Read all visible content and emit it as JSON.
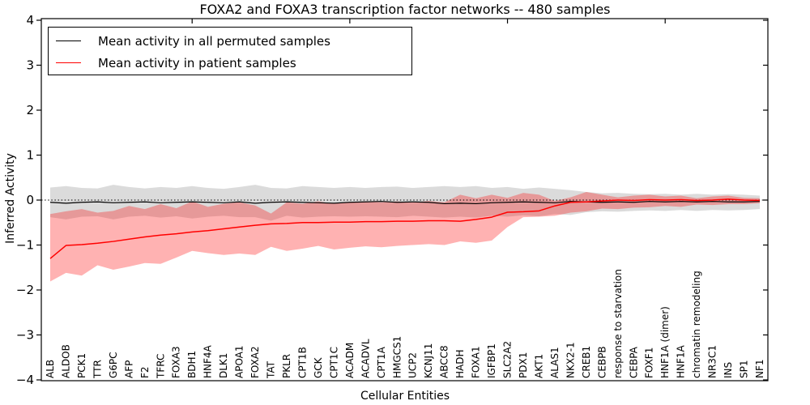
{
  "chart_data": {
    "type": "line",
    "title": "FOXA2 and FOXA3 transcription factor networks -- 480 samples",
    "xlabel": "Cellular Entities",
    "ylabel": "Inferred Activity",
    "ylim": [
      -4,
      4
    ],
    "yticks": [
      4,
      3,
      2,
      1,
      0,
      -1,
      -2,
      -3,
      -4
    ],
    "yticklabels": [
      "4",
      "3",
      "2",
      "1",
      "0",
      "−1",
      "−2",
      "−3",
      "−4"
    ],
    "grid": false,
    "zero_line": {
      "y": 0,
      "style": "dotted",
      "color": "#000000"
    },
    "top_axis_tick_indices": [
      9,
      19,
      29,
      39
    ],
    "legend": {
      "position": "upper left",
      "entries": [
        {
          "label": "Mean activity in all permuted samples",
          "color": "#000000"
        },
        {
          "label": "Mean activity in patient samples",
          "color": "#ff0000"
        }
      ]
    },
    "categories": [
      "ALB",
      "ALDOB",
      "PCK1",
      "TTR",
      "G6PC",
      "AFP",
      "F2",
      "TFRC",
      "FOXA3",
      "BDH1",
      "HNF4A",
      "DLK1",
      "APOA1",
      "FOXA2",
      "TAT",
      "PKLR",
      "CPT1B",
      "GCK",
      "CPT1C",
      "ACADM",
      "ACADVL",
      "CPT1A",
      "HMGCS1",
      "UCP2",
      "KCNJ11",
      "ABCC8",
      "HADH",
      "FOXA1",
      "IGFBP1",
      "SLC2A2",
      "PDX1",
      "AKT1",
      "ALAS1",
      "NKX2-1",
      "CREB1",
      "CEBPB",
      "response to starvation",
      "CEBPA",
      "FOXF1",
      "HNF1A (dimer)",
      "HNF1A",
      "chromatin remodeling",
      "NR3C1",
      "INS",
      "SP1",
      "NF1"
    ],
    "series": [
      {
        "name": "Mean activity in all permuted samples",
        "color": "#000000",
        "line_width": 1.2,
        "band_color": "#000000",
        "band_opacity": 0.14,
        "values": [
          -0.05,
          -0.07,
          -0.05,
          -0.04,
          -0.06,
          -0.05,
          -0.04,
          -0.06,
          -0.05,
          -0.04,
          -0.05,
          -0.06,
          -0.04,
          -0.07,
          -0.05,
          -0.04,
          -0.05,
          -0.06,
          -0.07,
          -0.05,
          -0.04,
          -0.03,
          -0.05,
          -0.04,
          -0.05,
          -0.08,
          -0.07,
          -0.08,
          -0.06,
          -0.05,
          -0.04,
          -0.05,
          -0.06,
          -0.03,
          -0.04,
          -0.05,
          -0.04,
          -0.05,
          -0.03,
          -0.04,
          -0.03,
          -0.04,
          -0.03,
          -0.04,
          -0.04,
          -0.03
        ],
        "band_upper": [
          0.28,
          0.31,
          0.27,
          0.26,
          0.34,
          0.29,
          0.26,
          0.29,
          0.27,
          0.31,
          0.27,
          0.25,
          0.29,
          0.34,
          0.27,
          0.26,
          0.31,
          0.29,
          0.27,
          0.29,
          0.27,
          0.29,
          0.3,
          0.27,
          0.29,
          0.31,
          0.29,
          0.31,
          0.27,
          0.29,
          0.25,
          0.28,
          0.25,
          0.22,
          0.18,
          0.15,
          0.16,
          0.14,
          0.13,
          0.14,
          0.12,
          0.14,
          0.12,
          0.13,
          0.12,
          0.1
        ],
        "band_lower": [
          -0.38,
          -0.43,
          -0.37,
          -0.36,
          -0.43,
          -0.37,
          -0.35,
          -0.39,
          -0.36,
          -0.41,
          -0.37,
          -0.35,
          -0.38,
          -0.38,
          -0.46,
          -0.35,
          -0.39,
          -0.37,
          -0.36,
          -0.37,
          -0.36,
          -0.37,
          -0.38,
          -0.35,
          -0.37,
          -0.39,
          -0.37,
          -0.39,
          -0.35,
          -0.37,
          -0.34,
          -0.36,
          -0.31,
          -0.33,
          -0.27,
          -0.25,
          -0.26,
          -0.24,
          -0.23,
          -0.24,
          -0.22,
          -0.24,
          -0.22,
          -0.23,
          -0.22,
          -0.2
        ]
      },
      {
        "name": "Mean activity in patient samples",
        "color": "#ff0000",
        "line_width": 1.5,
        "band_color": "#ff0000",
        "band_opacity": 0.3,
        "values": [
          -1.3,
          -1.01,
          -0.99,
          -0.96,
          -0.92,
          -0.87,
          -0.82,
          -0.78,
          -0.75,
          -0.71,
          -0.68,
          -0.64,
          -0.6,
          -0.56,
          -0.53,
          -0.52,
          -0.5,
          -0.5,
          -0.49,
          -0.49,
          -0.48,
          -0.48,
          -0.47,
          -0.47,
          -0.46,
          -0.46,
          -0.47,
          -0.43,
          -0.38,
          -0.27,
          -0.26,
          -0.24,
          -0.13,
          -0.05,
          -0.04,
          -0.02,
          0.0,
          -0.01,
          0.01,
          0.0,
          0.01,
          -0.01,
          0.0,
          0.02,
          0.0,
          -0.01
        ],
        "band_upper": [
          -0.31,
          -0.25,
          -0.2,
          -0.28,
          -0.24,
          -0.13,
          -0.2,
          -0.09,
          -0.18,
          -0.03,
          -0.15,
          -0.08,
          -0.05,
          -0.12,
          -0.3,
          -0.05,
          -0.08,
          -0.03,
          -0.08,
          -0.04,
          -0.03,
          -0.05,
          -0.03,
          -0.05,
          -0.02,
          -0.05,
          0.12,
          0.04,
          0.12,
          0.05,
          0.16,
          0.12,
          -0.02,
          0.06,
          0.18,
          0.12,
          0.06,
          0.1,
          0.12,
          0.08,
          0.1,
          0.04,
          0.08,
          0.1,
          0.05,
          0.04
        ],
        "band_lower": [
          -1.81,
          -1.62,
          -1.68,
          -1.45,
          -1.55,
          -1.48,
          -1.4,
          -1.42,
          -1.28,
          -1.13,
          -1.18,
          -1.22,
          -1.19,
          -1.22,
          -1.04,
          -1.13,
          -1.08,
          -1.02,
          -1.1,
          -1.06,
          -1.03,
          -1.05,
          -1.02,
          -1.0,
          -0.98,
          -1.0,
          -0.92,
          -0.95,
          -0.9,
          -0.6,
          -0.38,
          -0.37,
          -0.35,
          -0.28,
          -0.25,
          -0.19,
          -0.2,
          -0.17,
          -0.16,
          -0.13,
          -0.15,
          -0.1,
          -0.11,
          -0.09,
          -0.09,
          -0.07
        ]
      }
    ]
  }
}
